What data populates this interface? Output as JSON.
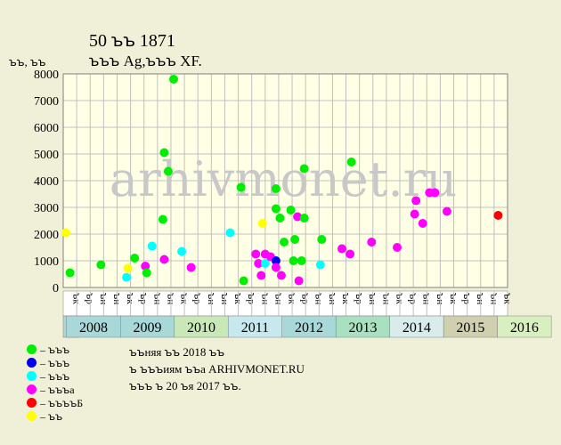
{
  "header": {
    "title": "50 ꙏꙏ 1871",
    "subtitle": "ꙏꙏꙏ Ag,ꙏꙏꙏ XF."
  },
  "watermark": "arhivmonet.ru",
  "legend": [
    {
      "label": "– ꙏꙏꙏ",
      "color": "#00ee00"
    },
    {
      "label": "– ꙏꙏꙏ",
      "color": "#0000ee"
    },
    {
      "label": "– ꙏꙏꙏ",
      "color": "#00ffff"
    },
    {
      "label": "– ꙏꙏꙏа",
      "color": "#ff00ff"
    },
    {
      "label": "– ꙏꙏꙏꙏБ",
      "color": "#ff0000"
    },
    {
      "label": "– ꙏꙏ",
      "color": "#ffff00"
    }
  ],
  "notes": {
    "line1": "ꙏꙏняя ꙏꙏ 2018 ꙏꙏ",
    "line2": "ꙏ ꙏꙏꙏиям ꙏꙏа ARHIVMONET.RU",
    "line3": "ꙏꙏꙏ ꙏ 20 ꙏя 2017 ꙏꙏ."
  },
  "chart_data": {
    "type": "scatter",
    "ylabel": "ꙏꙏ, ꙏꙏ",
    "ylim": [
      0,
      8000
    ],
    "yticks": [
      0,
      1000,
      2000,
      3000,
      4000,
      5000,
      6000,
      7000,
      8000
    ],
    "grid": true,
    "x_columns": 33,
    "x_tick_labels": [
      "ꙏк",
      "ꙏр",
      "ꙏн",
      "ꙏн",
      "ꙏк",
      "ꙏр",
      "ꙏн",
      "ꙏн",
      "ꙏк",
      "ꙏр",
      "ꙏн",
      "ꙏн",
      "ꙏк",
      "ꙏр",
      "ꙏн",
      "ꙏн",
      "ꙏк",
      "ꙏр",
      "ꙏн",
      "ꙏн",
      "ꙏк",
      "ꙏр",
      "ꙏн",
      "ꙏн",
      "ꙏк",
      "ꙏр",
      "ꙏн",
      "ꙏн",
      "ꙏк",
      "ꙏр",
      "ꙏн",
      "ꙏн",
      "ꙏк"
    ],
    "years": [
      {
        "label": "2008",
        "color": "#a8d8d8"
      },
      {
        "label": "2009",
        "color": "#a8d8d8"
      },
      {
        "label": "2010",
        "color": "#c8e8b8"
      },
      {
        "label": "2011",
        "color": "#c8e8f0"
      },
      {
        "label": "2012",
        "color": "#a8d8d8"
      },
      {
        "label": "2013",
        "color": "#a8e0c0"
      },
      {
        "label": "2014",
        "color": "#d8ecec"
      },
      {
        "label": "2015",
        "color": "#d0d0b0"
      },
      {
        "label": "2016",
        "color": "#d8f0c0"
      }
    ],
    "points": [
      {
        "x": 0.2,
        "y": 2050,
        "color": "yellow"
      },
      {
        "x": 0.5,
        "y": 550,
        "color": "green"
      },
      {
        "x": 2.8,
        "y": 850,
        "color": "green"
      },
      {
        "x": 4.7,
        "y": 380,
        "color": "cyan"
      },
      {
        "x": 4.8,
        "y": 720,
        "color": "yellow"
      },
      {
        "x": 5.3,
        "y": 1100,
        "color": "green"
      },
      {
        "x": 6.1,
        "y": 800,
        "color": "magenta"
      },
      {
        "x": 6.2,
        "y": 550,
        "color": "green"
      },
      {
        "x": 6.6,
        "y": 1550,
        "color": "cyan"
      },
      {
        "x": 7.4,
        "y": 2550,
        "color": "green"
      },
      {
        "x": 7.5,
        "y": 1050,
        "color": "magenta"
      },
      {
        "x": 7.5,
        "y": 5050,
        "color": "green"
      },
      {
        "x": 7.8,
        "y": 4350,
        "color": "green"
      },
      {
        "x": 8.2,
        "y": 7800,
        "color": "green"
      },
      {
        "x": 8.8,
        "y": 1350,
        "color": "cyan"
      },
      {
        "x": 9.5,
        "y": 750,
        "color": "magenta"
      },
      {
        "x": 12.4,
        "y": 2050,
        "color": "cyan"
      },
      {
        "x": 13.2,
        "y": 3750,
        "color": "green"
      },
      {
        "x": 13.4,
        "y": 250,
        "color": "green"
      },
      {
        "x": 14.3,
        "y": 1250,
        "color": "magenta"
      },
      {
        "x": 14.5,
        "y": 900,
        "color": "magenta"
      },
      {
        "x": 14.7,
        "y": 450,
        "color": "magenta"
      },
      {
        "x": 14.8,
        "y": 2400,
        "color": "yellow"
      },
      {
        "x": 15.0,
        "y": 900,
        "color": "cyan"
      },
      {
        "x": 15.0,
        "y": 1250,
        "color": "magenta"
      },
      {
        "x": 15.4,
        "y": 1150,
        "color": "magenta"
      },
      {
        "x": 15.8,
        "y": 1000,
        "color": "blue"
      },
      {
        "x": 15.8,
        "y": 750,
        "color": "magenta"
      },
      {
        "x": 15.8,
        "y": 2950,
        "color": "green"
      },
      {
        "x": 15.8,
        "y": 3700,
        "color": "green"
      },
      {
        "x": 16.1,
        "y": 2600,
        "color": "green"
      },
      {
        "x": 16.2,
        "y": 450,
        "color": "magenta"
      },
      {
        "x": 16.4,
        "y": 1700,
        "color": "green"
      },
      {
        "x": 16.9,
        "y": 2900,
        "color": "green"
      },
      {
        "x": 17.1,
        "y": 1000,
        "color": "green"
      },
      {
        "x": 17.2,
        "y": 1800,
        "color": "green"
      },
      {
        "x": 17.4,
        "y": 2650,
        "color": "magenta"
      },
      {
        "x": 17.5,
        "y": 250,
        "color": "magenta"
      },
      {
        "x": 17.7,
        "y": 1000,
        "color": "green"
      },
      {
        "x": 17.9,
        "y": 2600,
        "color": "green"
      },
      {
        "x": 17.9,
        "y": 4450,
        "color": "green"
      },
      {
        "x": 19.1,
        "y": 850,
        "color": "cyan"
      },
      {
        "x": 19.2,
        "y": 1800,
        "color": "green"
      },
      {
        "x": 20.7,
        "y": 1450,
        "color": "magenta"
      },
      {
        "x": 21.3,
        "y": 1250,
        "color": "magenta"
      },
      {
        "x": 21.4,
        "y": 4700,
        "color": "green"
      },
      {
        "x": 22.9,
        "y": 1700,
        "color": "magenta"
      },
      {
        "x": 24.8,
        "y": 1500,
        "color": "magenta"
      },
      {
        "x": 26.1,
        "y": 2750,
        "color": "magenta"
      },
      {
        "x": 26.2,
        "y": 3250,
        "color": "magenta"
      },
      {
        "x": 26.7,
        "y": 2400,
        "color": "magenta"
      },
      {
        "x": 27.2,
        "y": 3550,
        "color": "magenta"
      },
      {
        "x": 27.6,
        "y": 3550,
        "color": "magenta"
      },
      {
        "x": 28.5,
        "y": 2850,
        "color": "magenta"
      },
      {
        "x": 32.3,
        "y": 2700,
        "color": "red"
      }
    ],
    "colors": {
      "green": "#00ee00",
      "blue": "#0000ee",
      "cyan": "#00ffff",
      "magenta": "#ff00ff",
      "red": "#ff0000",
      "yellow": "#ffff00"
    }
  }
}
